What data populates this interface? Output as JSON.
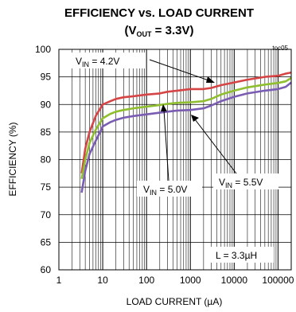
{
  "chart_data": {
    "type": "line",
    "title": "EFFICIENCY vs. LOAD CURRENT",
    "subtitle": {
      "prefix": "(V",
      "sub": "OUT",
      "suffix": " = 3.3V)"
    },
    "tag": "toc05",
    "xlabel": "LOAD CURRENT (µA)",
    "ylabel": "EFFICIENCY (%)",
    "x_scale": "log",
    "xlim": [
      1,
      200000
    ],
    "ylim": [
      60,
      100
    ],
    "x_ticks": [
      "1",
      "10",
      "100",
      "1000",
      "10000",
      "100000"
    ],
    "y_ticks": [
      "60",
      "65",
      "70",
      "75",
      "80",
      "85",
      "90",
      "95",
      "100"
    ],
    "grid": true,
    "series": [
      {
        "label": {
          "prefix": "V",
          "sub": "IN",
          "suffix": " = 4.2V"
        },
        "color": "#d64545",
        "points": [
          [
            3.3,
            77.5
          ],
          [
            4,
            82
          ],
          [
            5,
            85
          ],
          [
            7,
            88
          ],
          [
            10,
            90
          ],
          [
            15,
            90.6
          ],
          [
            20,
            91
          ],
          [
            30,
            91.3
          ],
          [
            50,
            91.5
          ],
          [
            100,
            91.8
          ],
          [
            200,
            92
          ],
          [
            300,
            92.3
          ],
          [
            500,
            92.5
          ],
          [
            1000,
            92.8
          ],
          [
            2000,
            92.8
          ],
          [
            3000,
            93
          ],
          [
            5000,
            93.5
          ],
          [
            10000,
            94
          ],
          [
            20000,
            94.5
          ],
          [
            50000,
            95
          ],
          [
            100000,
            95.2
          ],
          [
            150000,
            95.6
          ],
          [
            200000,
            95.8
          ]
        ]
      },
      {
        "label": {
          "prefix": "V",
          "sub": "IN",
          "suffix": " = 5.0V"
        },
        "color": "#8fbf2f",
        "points": [
          [
            3.3,
            76.5
          ],
          [
            4,
            80
          ],
          [
            5,
            83
          ],
          [
            7,
            85.5
          ],
          [
            10,
            87.5
          ],
          [
            15,
            88.3
          ],
          [
            20,
            88.7
          ],
          [
            30,
            89
          ],
          [
            50,
            89.3
          ],
          [
            100,
            89.6
          ],
          [
            200,
            89.9
          ],
          [
            300,
            90.1
          ],
          [
            500,
            90.3
          ],
          [
            1000,
            90.4
          ],
          [
            2000,
            90.6
          ],
          [
            3000,
            91
          ],
          [
            5000,
            91.8
          ],
          [
            10000,
            92.5
          ],
          [
            20000,
            93.1
          ],
          [
            50000,
            93.6
          ],
          [
            100000,
            93.9
          ],
          [
            150000,
            94.2
          ],
          [
            200000,
            94.8
          ]
        ]
      },
      {
        "label": {
          "prefix": "V",
          "sub": "IN",
          "suffix": " = 5.5V"
        },
        "color": "#7a5cb3",
        "points": [
          [
            3.3,
            74
          ],
          [
            4,
            78
          ],
          [
            5,
            81
          ],
          [
            7,
            83.5
          ],
          [
            10,
            86
          ],
          [
            15,
            86.8
          ],
          [
            20,
            87.2
          ],
          [
            30,
            87.6
          ],
          [
            50,
            87.9
          ],
          [
            100,
            88.2
          ],
          [
            200,
            88.5
          ],
          [
            300,
            88.7
          ],
          [
            500,
            88.9
          ],
          [
            1000,
            89
          ],
          [
            2000,
            89.3
          ],
          [
            3000,
            89.8
          ],
          [
            5000,
            90.6
          ],
          [
            10000,
            91.4
          ],
          [
            20000,
            92
          ],
          [
            50000,
            92.5
          ],
          [
            100000,
            92.8
          ],
          [
            150000,
            93.2
          ],
          [
            200000,
            94
          ]
        ]
      }
    ],
    "annotations": [
      {
        "text": "L = 3.3µH"
      }
    ]
  }
}
